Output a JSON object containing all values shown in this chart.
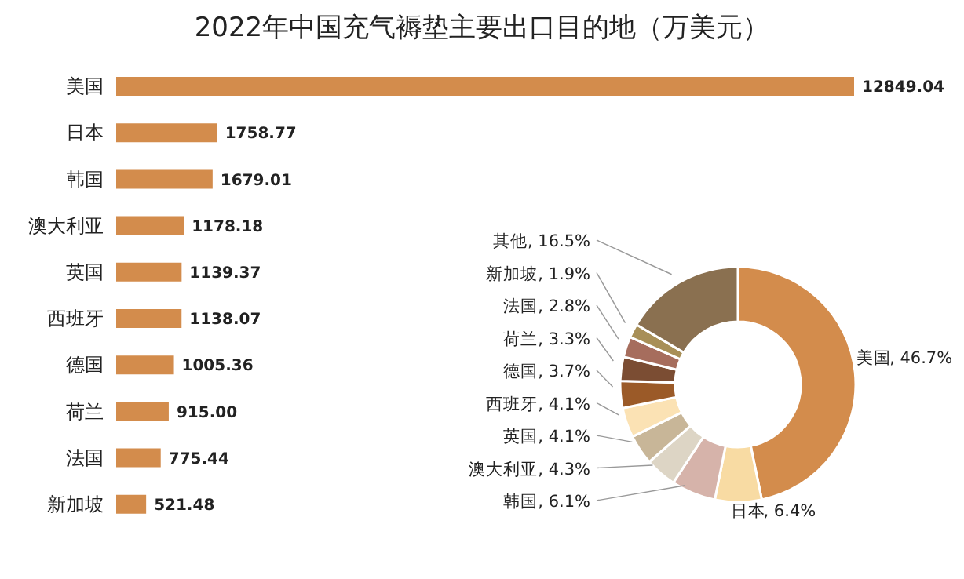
{
  "chart_data": [
    {
      "type": "bar",
      "orientation": "horizontal",
      "title": "2022年中国充气褥垫主要出口目的地（万美元）",
      "categories": [
        "美国",
        "日本",
        "韩国",
        "澳大利亚",
        "英国",
        "西班牙",
        "德国",
        "荷兰",
        "法国",
        "新加坡"
      ],
      "values": [
        12849.04,
        1758.77,
        1679.01,
        1178.18,
        1139.37,
        1138.07,
        1005.36,
        915.0,
        775.44,
        521.48
      ],
      "value_labels": [
        "12849.04",
        "1758.77",
        "1679.01",
        "1178.18",
        "1139.37",
        "1138.07",
        "1005.36",
        "915.00",
        "775.44",
        "521.48"
      ],
      "color": "#d38c4c",
      "tick_labels": "y"
    },
    {
      "type": "donut",
      "categories": [
        "美国",
        "日本",
        "韩国",
        "澳大利亚",
        "英国",
        "西班牙",
        "德国",
        "荷兰",
        "法国",
        "新加坡",
        "其他"
      ],
      "values": [
        46.7,
        6.4,
        6.1,
        4.3,
        4.1,
        4.1,
        3.7,
        3.3,
        2.8,
        1.9,
        16.5
      ],
      "colors": [
        "#d38c4c",
        "#f8dba3",
        "#d6b3aa",
        "#ddd5c5",
        "#c8b698",
        "#fbe2b4",
        "#9b5a28",
        "#7b4d33",
        "#a66d5d",
        "#a88f57",
        "#8a7050"
      ],
      "value_labels": [
        ", 46.7%",
        ", 6.4%",
        ", 6.1%",
        ", 4.3%",
        ", 4.1%",
        ", 4.1%",
        ", 3.7%",
        ", 3.3%",
        ", 2.8%",
        ", 1.9%",
        ", 16.5%"
      ]
    }
  ]
}
